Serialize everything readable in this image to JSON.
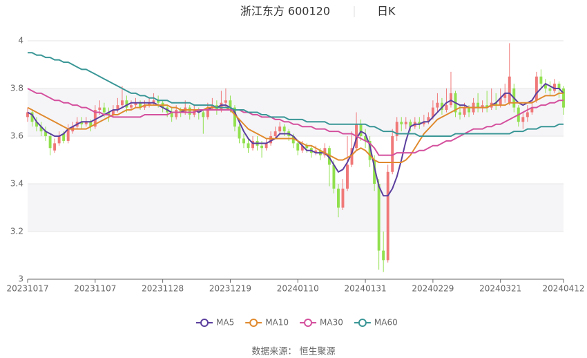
{
  "chart_data": {
    "type": "candlestick",
    "title": "浙江东方 600120",
    "period": "日K",
    "source": "数据来源： 恒生聚源",
    "up_color": "#f07878",
    "down_color": "#91e04e",
    "ylim": [
      3,
      4
    ],
    "yticks": [
      3,
      3.2,
      3.4,
      3.6,
      3.8,
      4
    ],
    "grid": true,
    "categories": [
      "20231017",
      null,
      null,
      null,
      null,
      null,
      null,
      null,
      null,
      null,
      null,
      null,
      null,
      null,
      null,
      "20231107",
      null,
      null,
      null,
      null,
      null,
      null,
      null,
      null,
      null,
      null,
      null,
      null,
      null,
      null,
      "20231128",
      null,
      null,
      null,
      null,
      null,
      null,
      null,
      null,
      null,
      null,
      null,
      null,
      null,
      null,
      "20231219",
      null,
      null,
      null,
      null,
      null,
      null,
      null,
      null,
      null,
      null,
      null,
      null,
      null,
      null,
      "20240110",
      null,
      null,
      null,
      null,
      null,
      null,
      null,
      null,
      null,
      null,
      null,
      null,
      null,
      null,
      "20240131",
      null,
      null,
      null,
      null,
      null,
      null,
      null,
      null,
      null,
      null,
      null,
      null,
      null,
      null,
      "20240229",
      null,
      null,
      null,
      null,
      null,
      null,
      null,
      null,
      null,
      null,
      null,
      null,
      null,
      null,
      "20240321",
      null,
      null,
      null,
      null,
      null,
      null,
      null,
      null,
      null,
      null,
      null,
      null,
      null,
      "20240412"
    ],
    "candles": [
      [
        3.68,
        3.7,
        3.66,
        3.72
      ],
      [
        3.7,
        3.66,
        3.64,
        3.71
      ],
      [
        3.66,
        3.64,
        3.62,
        3.68
      ],
      [
        3.64,
        3.62,
        3.6,
        3.66
      ],
      [
        3.62,
        3.6,
        3.58,
        3.64
      ],
      [
        3.6,
        3.55,
        3.52,
        3.61
      ],
      [
        3.54,
        3.57,
        3.53,
        3.59
      ],
      [
        3.57,
        3.6,
        3.56,
        3.62
      ],
      [
        3.61,
        3.58,
        3.57,
        3.62
      ],
      [
        3.58,
        3.63,
        3.57,
        3.65
      ],
      [
        3.62,
        3.64,
        3.61,
        3.66
      ],
      [
        3.64,
        3.66,
        3.63,
        3.68
      ],
      [
        3.66,
        3.65,
        3.63,
        3.68
      ],
      [
        3.65,
        3.66,
        3.64,
        3.68
      ],
      [
        3.66,
        3.64,
        3.62,
        3.67
      ],
      [
        3.64,
        3.71,
        3.63,
        3.73
      ],
      [
        3.71,
        3.72,
        3.69,
        3.75
      ],
      [
        3.72,
        3.7,
        3.68,
        3.74
      ],
      [
        3.7,
        3.69,
        3.66,
        3.72
      ],
      [
        3.69,
        3.71,
        3.68,
        3.73
      ],
      [
        3.71,
        3.73,
        3.7,
        3.76
      ],
      [
        3.73,
        3.75,
        3.72,
        3.81
      ],
      [
        3.75,
        3.72,
        3.7,
        3.77
      ],
      [
        3.72,
        3.73,
        3.71,
        3.75
      ],
      [
        3.73,
        3.74,
        3.72,
        3.76
      ],
      [
        3.74,
        3.72,
        3.71,
        3.75
      ],
      [
        3.72,
        3.73,
        3.71,
        3.75
      ],
      [
        3.73,
        3.74,
        3.72,
        3.76
      ],
      [
        3.74,
        3.75,
        3.73,
        3.78
      ],
      [
        3.75,
        3.74,
        3.72,
        3.77
      ],
      [
        3.74,
        3.72,
        3.7,
        3.75
      ],
      [
        3.72,
        3.7,
        3.68,
        3.73
      ],
      [
        3.7,
        3.68,
        3.66,
        3.72
      ],
      [
        3.68,
        3.71,
        3.67,
        3.73
      ],
      [
        3.71,
        3.7,
        3.68,
        3.72
      ],
      [
        3.7,
        3.72,
        3.69,
        3.75
      ],
      [
        3.72,
        3.69,
        3.67,
        3.73
      ],
      [
        3.69,
        3.71,
        3.68,
        3.73
      ],
      [
        3.71,
        3.7,
        3.67,
        3.72
      ],
      [
        3.7,
        3.68,
        3.61,
        3.71
      ],
      [
        3.68,
        3.72,
        3.67,
        3.74
      ],
      [
        3.72,
        3.73,
        3.71,
        3.76
      ],
      [
        3.73,
        3.71,
        3.69,
        3.75
      ],
      [
        3.71,
        3.74,
        3.7,
        3.79
      ],
      [
        3.74,
        3.75,
        3.72,
        3.8
      ],
      [
        3.75,
        3.72,
        3.7,
        3.77
      ],
      [
        3.72,
        3.64,
        3.62,
        3.73
      ],
      [
        3.64,
        3.59,
        3.57,
        3.65
      ],
      [
        3.59,
        3.57,
        3.55,
        3.61
      ],
      [
        3.57,
        3.55,
        3.53,
        3.59
      ],
      [
        3.55,
        3.58,
        3.54,
        3.6
      ],
      [
        3.58,
        3.56,
        3.54,
        3.6
      ],
      [
        3.56,
        3.55,
        3.51,
        3.58
      ],
      [
        3.55,
        3.57,
        3.54,
        3.59
      ],
      [
        3.57,
        3.6,
        3.56,
        3.62
      ],
      [
        3.6,
        3.62,
        3.59,
        3.64
      ],
      [
        3.62,
        3.64,
        3.61,
        3.66
      ],
      [
        3.64,
        3.62,
        3.6,
        3.65
      ],
      [
        3.62,
        3.6,
        3.58,
        3.63
      ],
      [
        3.6,
        3.57,
        3.55,
        3.61
      ],
      [
        3.57,
        3.54,
        3.52,
        3.58
      ],
      [
        3.54,
        3.56,
        3.53,
        3.58
      ],
      [
        3.56,
        3.55,
        3.53,
        3.57
      ],
      [
        3.55,
        3.53,
        3.51,
        3.56
      ],
      [
        3.53,
        3.54,
        3.52,
        3.56
      ],
      [
        3.54,
        3.52,
        3.5,
        3.55
      ],
      [
        3.52,
        3.55,
        3.51,
        3.57
      ],
      [
        3.55,
        3.48,
        3.39,
        3.56
      ],
      [
        3.48,
        3.38,
        3.36,
        3.5
      ],
      [
        3.38,
        3.3,
        3.26,
        3.4
      ],
      [
        3.3,
        3.38,
        3.29,
        3.42
      ],
      [
        3.38,
        3.48,
        3.37,
        3.6
      ],
      [
        3.48,
        3.55,
        3.47,
        3.62
      ],
      [
        3.55,
        3.65,
        3.54,
        3.7
      ],
      [
        3.65,
        3.6,
        3.58,
        3.67
      ],
      [
        3.6,
        3.58,
        3.55,
        3.63
      ],
      [
        3.58,
        3.5,
        3.47,
        3.6
      ],
      [
        3.5,
        3.4,
        3.37,
        3.52
      ],
      [
        3.4,
        3.12,
        3.04,
        3.42
      ],
      [
        3.12,
        3.08,
        3.03,
        3.2
      ],
      [
        3.08,
        3.45,
        3.07,
        3.48
      ],
      [
        3.45,
        3.6,
        3.44,
        3.63
      ],
      [
        3.6,
        3.66,
        3.58,
        3.68
      ],
      [
        3.66,
        3.65,
        3.62,
        3.68
      ],
      [
        3.65,
        3.66,
        3.63,
        3.68
      ],
      [
        3.66,
        3.64,
        3.62,
        3.67
      ],
      [
        3.64,
        3.66,
        3.63,
        3.68
      ],
      [
        3.66,
        3.65,
        3.63,
        3.68
      ],
      [
        3.65,
        3.66,
        3.64,
        3.69
      ],
      [
        3.66,
        3.68,
        3.65,
        3.7
      ],
      [
        3.68,
        3.72,
        3.67,
        3.75
      ],
      [
        3.72,
        3.74,
        3.7,
        3.78
      ],
      [
        3.74,
        3.71,
        3.69,
        3.76
      ],
      [
        3.71,
        3.73,
        3.7,
        3.8
      ],
      [
        3.73,
        3.78,
        3.72,
        3.87
      ],
      [
        3.78,
        3.7,
        3.68,
        3.79
      ],
      [
        3.7,
        3.69,
        3.67,
        3.73
      ],
      [
        3.69,
        3.72,
        3.68,
        3.74
      ],
      [
        3.72,
        3.7,
        3.68,
        3.73
      ],
      [
        3.7,
        3.74,
        3.69,
        3.76
      ],
      [
        3.74,
        3.72,
        3.7,
        3.78
      ],
      [
        3.72,
        3.73,
        3.7,
        3.75
      ],
      [
        3.73,
        3.72,
        3.7,
        3.79
      ],
      [
        3.72,
        3.74,
        3.71,
        3.8
      ],
      [
        3.74,
        3.73,
        3.71,
        3.78
      ],
      [
        3.73,
        3.76,
        3.72,
        3.8
      ],
      [
        3.76,
        3.78,
        3.74,
        3.82
      ],
      [
        3.74,
        3.85,
        3.73,
        3.99
      ],
      [
        3.8,
        3.72,
        3.7,
        3.82
      ],
      [
        3.72,
        3.66,
        3.64,
        3.73
      ],
      [
        3.66,
        3.68,
        3.63,
        3.7
      ],
      [
        3.68,
        3.7,
        3.66,
        3.73
      ],
      [
        3.7,
        3.72,
        3.69,
        3.75
      ],
      [
        3.75,
        3.85,
        3.74,
        3.87
      ],
      [
        3.85,
        3.82,
        3.8,
        3.88
      ],
      [
        3.82,
        3.8,
        3.78,
        3.84
      ],
      [
        3.8,
        3.79,
        3.77,
        3.83
      ],
      [
        3.79,
        3.82,
        3.78,
        3.84
      ],
      [
        3.82,
        3.8,
        3.76,
        3.83
      ],
      [
        3.8,
        3.72,
        3.69,
        3.81
      ]
    ],
    "series": [
      {
        "name": "MA5",
        "color": "#5b3f9e",
        "values": [
          3.7,
          3.69,
          3.66,
          3.64,
          3.62,
          3.61,
          3.6,
          3.6,
          3.61,
          3.63,
          3.64,
          3.65,
          3.66,
          3.66,
          3.66,
          3.67,
          3.68,
          3.69,
          3.7,
          3.71,
          3.71,
          3.72,
          3.73,
          3.74,
          3.74,
          3.74,
          3.74,
          3.74,
          3.74,
          3.73,
          3.72,
          3.71,
          3.7,
          3.7,
          3.7,
          3.71,
          3.71,
          3.71,
          3.7,
          3.71,
          3.71,
          3.72,
          3.72,
          3.73,
          3.73,
          3.72,
          3.7,
          3.66,
          3.62,
          3.59,
          3.57,
          3.57,
          3.57,
          3.57,
          3.58,
          3.59,
          3.61,
          3.61,
          3.61,
          3.6,
          3.58,
          3.56,
          3.54,
          3.54,
          3.53,
          3.53,
          3.53,
          3.51,
          3.48,
          3.45,
          3.46,
          3.49,
          3.53,
          3.59,
          3.62,
          3.61,
          3.56,
          3.47,
          3.39,
          3.35,
          3.35,
          3.38,
          3.43,
          3.5,
          3.58,
          3.64,
          3.65,
          3.65,
          3.66,
          3.66,
          3.68,
          3.7,
          3.72,
          3.74,
          3.75,
          3.74,
          3.73,
          3.73,
          3.72,
          3.72,
          3.72,
          3.72,
          3.72,
          3.73,
          3.74,
          3.76,
          3.78,
          3.78,
          3.76,
          3.74,
          3.73,
          3.74,
          3.75,
          3.78,
          3.8,
          3.82,
          3.81,
          3.8,
          3.8,
          3.78
        ]
      },
      {
        "name": "MA10",
        "color": "#e08a2e",
        "values": [
          3.72,
          3.71,
          3.7,
          3.69,
          3.68,
          3.67,
          3.66,
          3.65,
          3.64,
          3.63,
          3.63,
          3.63,
          3.63,
          3.63,
          3.64,
          3.65,
          3.66,
          3.67,
          3.68,
          3.69,
          3.69,
          3.7,
          3.71,
          3.71,
          3.72,
          3.72,
          3.73,
          3.73,
          3.73,
          3.73,
          3.73,
          3.73,
          3.72,
          3.72,
          3.71,
          3.71,
          3.71,
          3.71,
          3.71,
          3.71,
          3.72,
          3.72,
          3.72,
          3.72,
          3.72,
          3.71,
          3.69,
          3.67,
          3.65,
          3.63,
          3.62,
          3.61,
          3.6,
          3.59,
          3.59,
          3.59,
          3.59,
          3.59,
          3.59,
          3.59,
          3.58,
          3.57,
          3.56,
          3.56,
          3.55,
          3.54,
          3.53,
          3.52,
          3.51,
          3.5,
          3.5,
          3.51,
          3.52,
          3.54,
          3.55,
          3.54,
          3.52,
          3.5,
          3.49,
          3.49,
          3.49,
          3.49,
          3.49,
          3.49,
          3.5,
          3.52,
          3.55,
          3.58,
          3.61,
          3.63,
          3.65,
          3.67,
          3.68,
          3.69,
          3.7,
          3.71,
          3.72,
          3.72,
          3.72,
          3.72,
          3.72,
          3.72,
          3.72,
          3.73,
          3.73,
          3.73,
          3.73,
          3.74,
          3.74,
          3.74,
          3.74,
          3.74,
          3.74,
          3.75,
          3.76,
          3.77,
          3.77,
          3.77,
          3.78,
          3.78
        ]
      },
      {
        "name": "MA30",
        "color": "#d4509d",
        "values": [
          3.8,
          3.79,
          3.78,
          3.78,
          3.77,
          3.76,
          3.75,
          3.75,
          3.74,
          3.74,
          3.73,
          3.73,
          3.72,
          3.72,
          3.71,
          3.7,
          3.7,
          3.69,
          3.69,
          3.68,
          3.68,
          3.68,
          3.68,
          3.68,
          3.68,
          3.68,
          3.69,
          3.69,
          3.69,
          3.69,
          3.69,
          3.69,
          3.7,
          3.7,
          3.7,
          3.7,
          3.7,
          3.7,
          3.71,
          3.71,
          3.71,
          3.71,
          3.71,
          3.71,
          3.71,
          3.71,
          3.71,
          3.71,
          3.7,
          3.7,
          3.69,
          3.69,
          3.68,
          3.68,
          3.68,
          3.67,
          3.67,
          3.66,
          3.66,
          3.65,
          3.65,
          3.64,
          3.64,
          3.64,
          3.63,
          3.63,
          3.63,
          3.62,
          3.62,
          3.62,
          3.61,
          3.61,
          3.61,
          3.6,
          3.59,
          3.58,
          3.57,
          3.55,
          3.52,
          3.52,
          3.52,
          3.52,
          3.53,
          3.53,
          3.53,
          3.53,
          3.53,
          3.54,
          3.54,
          3.55,
          3.56,
          3.56,
          3.57,
          3.58,
          3.58,
          3.59,
          3.6,
          3.61,
          3.62,
          3.63,
          3.63,
          3.63,
          3.64,
          3.64,
          3.65,
          3.65,
          3.66,
          3.67,
          3.68,
          3.69,
          3.7,
          3.71,
          3.72,
          3.72,
          3.73,
          3.73,
          3.74,
          3.74,
          3.75,
          3.75
        ]
      },
      {
        "name": "MA60",
        "color": "#3a9696",
        "values": [
          3.95,
          3.95,
          3.94,
          3.94,
          3.93,
          3.93,
          3.92,
          3.92,
          3.91,
          3.91,
          3.9,
          3.89,
          3.88,
          3.88,
          3.87,
          3.86,
          3.85,
          3.84,
          3.83,
          3.82,
          3.81,
          3.8,
          3.79,
          3.78,
          3.78,
          3.77,
          3.77,
          3.76,
          3.76,
          3.75,
          3.75,
          3.75,
          3.74,
          3.74,
          3.74,
          3.74,
          3.74,
          3.73,
          3.73,
          3.73,
          3.73,
          3.73,
          3.72,
          3.72,
          3.72,
          3.72,
          3.71,
          3.71,
          3.71,
          3.7,
          3.7,
          3.7,
          3.69,
          3.69,
          3.68,
          3.68,
          3.68,
          3.68,
          3.67,
          3.67,
          3.67,
          3.67,
          3.66,
          3.66,
          3.66,
          3.66,
          3.66,
          3.65,
          3.65,
          3.65,
          3.65,
          3.65,
          3.65,
          3.65,
          3.65,
          3.65,
          3.64,
          3.64,
          3.63,
          3.62,
          3.62,
          3.62,
          3.61,
          3.61,
          3.61,
          3.61,
          3.61,
          3.6,
          3.6,
          3.6,
          3.6,
          3.6,
          3.6,
          3.6,
          3.6,
          3.61,
          3.61,
          3.61,
          3.61,
          3.61,
          3.61,
          3.61,
          3.61,
          3.61,
          3.61,
          3.61,
          3.61,
          3.61,
          3.62,
          3.62,
          3.62,
          3.63,
          3.63,
          3.63,
          3.64,
          3.64,
          3.64,
          3.64,
          3.65,
          3.65
        ]
      }
    ]
  }
}
